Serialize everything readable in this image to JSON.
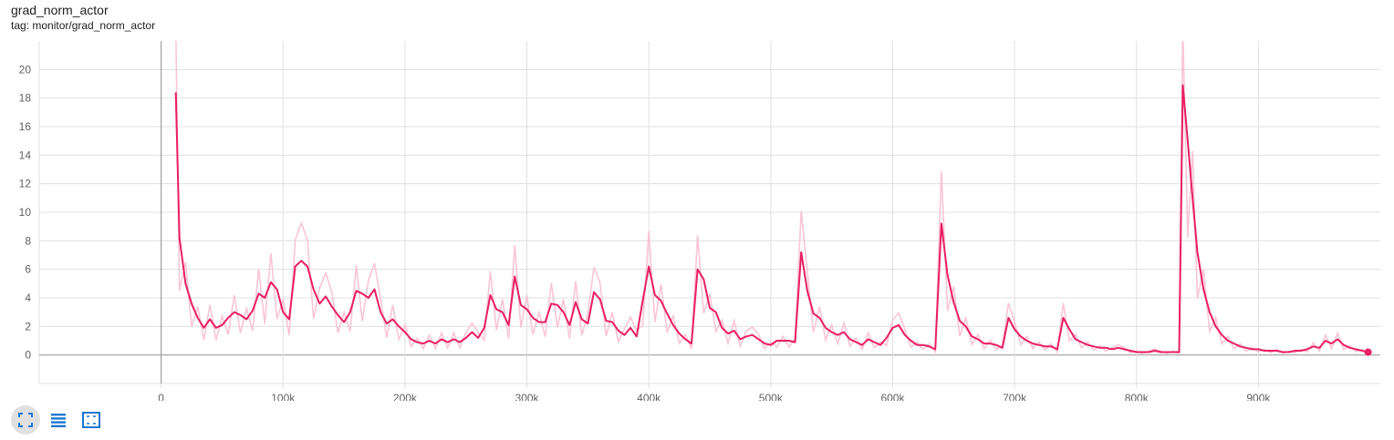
{
  "card": {
    "title": "grad_norm_actor",
    "tag": "tag: monitor/grad_norm_actor"
  },
  "toolbar": {
    "buttons": [
      "fullscreen-icon",
      "data-table-icon",
      "fit-domain-icon"
    ],
    "accent_color": "#1976d2"
  },
  "chart_data": {
    "type": "line",
    "title": "grad_norm_actor",
    "xlabel": "",
    "ylabel": "",
    "xlim": [
      -100000,
      1000000
    ],
    "ylim": [
      -2,
      22
    ],
    "grid": true,
    "x_ticks": [
      0,
      100000,
      200000,
      300000,
      400000,
      500000,
      600000,
      700000,
      800000,
      900000
    ],
    "x_tick_labels": [
      "0",
      "100k",
      "200k",
      "300k",
      "400k",
      "500k",
      "600k",
      "700k",
      "800k",
      "900k"
    ],
    "y_ticks": [
      0,
      2,
      4,
      6,
      8,
      10,
      12,
      14,
      16,
      18,
      20
    ],
    "y_tick_labels": [
      "0",
      "2",
      "4",
      "6",
      "8",
      "10",
      "12",
      "14",
      "16",
      "18",
      "20"
    ],
    "colors": {
      "smoothed": "#e91e63",
      "raw": "#f8bbd0",
      "grid": "#e0e0e0",
      "axis": "#9e9e9e"
    },
    "series": [
      {
        "values": [
          [
            12000,
            18.4
          ],
          [
            15000,
            8.2
          ],
          [
            20000,
            5.0
          ],
          [
            25000,
            3.6
          ],
          [
            30000,
            2.6
          ],
          [
            35000,
            1.9
          ],
          [
            40000,
            2.5
          ],
          [
            45000,
            1.9
          ],
          [
            50000,
            2.1
          ],
          [
            55000,
            2.6
          ],
          [
            60000,
            3.0
          ],
          [
            65000,
            2.8
          ],
          [
            70000,
            2.5
          ],
          [
            75000,
            3.1
          ],
          [
            80000,
            4.3
          ],
          [
            85000,
            4.0
          ],
          [
            90000,
            5.1
          ],
          [
            95000,
            4.6
          ],
          [
            100000,
            3.0
          ],
          [
            105000,
            2.5
          ],
          [
            110000,
            6.2
          ],
          [
            115000,
            6.6
          ],
          [
            120000,
            6.2
          ],
          [
            125000,
            4.6
          ],
          [
            130000,
            3.6
          ],
          [
            135000,
            4.1
          ],
          [
            140000,
            3.4
          ],
          [
            145000,
            2.8
          ],
          [
            150000,
            2.3
          ],
          [
            155000,
            3.0
          ],
          [
            160000,
            4.5
          ],
          [
            165000,
            4.3
          ],
          [
            170000,
            4.0
          ],
          [
            175000,
            4.6
          ],
          [
            180000,
            3.0
          ],
          [
            185000,
            2.2
          ],
          [
            190000,
            2.5
          ],
          [
            195000,
            2.0
          ],
          [
            200000,
            1.6
          ],
          [
            205000,
            1.1
          ],
          [
            210000,
            0.9
          ],
          [
            215000,
            0.8
          ],
          [
            220000,
            1.0
          ],
          [
            225000,
            0.8
          ],
          [
            230000,
            1.1
          ],
          [
            235000,
            0.9
          ],
          [
            240000,
            1.1
          ],
          [
            245000,
            0.9
          ],
          [
            250000,
            1.2
          ],
          [
            255000,
            1.6
          ],
          [
            260000,
            1.2
          ],
          [
            265000,
            1.9
          ],
          [
            270000,
            4.2
          ],
          [
            275000,
            3.2
          ],
          [
            280000,
            3.0
          ],
          [
            285000,
            2.1
          ],
          [
            290000,
            5.5
          ],
          [
            295000,
            3.5
          ],
          [
            300000,
            3.2
          ],
          [
            305000,
            2.6
          ],
          [
            310000,
            2.3
          ],
          [
            315000,
            2.3
          ],
          [
            320000,
            3.6
          ],
          [
            325000,
            3.5
          ],
          [
            330000,
            3.0
          ],
          [
            335000,
            2.1
          ],
          [
            340000,
            3.7
          ],
          [
            345000,
            2.5
          ],
          [
            350000,
            2.2
          ],
          [
            355000,
            4.4
          ],
          [
            360000,
            3.9
          ],
          [
            365000,
            2.4
          ],
          [
            370000,
            2.3
          ],
          [
            375000,
            1.7
          ],
          [
            380000,
            1.4
          ],
          [
            385000,
            1.9
          ],
          [
            390000,
            1.3
          ],
          [
            395000,
            3.8
          ],
          [
            400000,
            6.2
          ],
          [
            405000,
            4.2
          ],
          [
            410000,
            3.8
          ],
          [
            415000,
            2.9
          ],
          [
            420000,
            2.1
          ],
          [
            425000,
            1.5
          ],
          [
            430000,
            1.1
          ],
          [
            435000,
            0.8
          ],
          [
            440000,
            6.0
          ],
          [
            445000,
            5.3
          ],
          [
            450000,
            3.3
          ],
          [
            455000,
            3.0
          ],
          [
            460000,
            1.9
          ],
          [
            465000,
            1.5
          ],
          [
            470000,
            1.7
          ],
          [
            475000,
            1.1
          ],
          [
            480000,
            1.3
          ],
          [
            485000,
            1.4
          ],
          [
            490000,
            1.1
          ],
          [
            495000,
            0.8
          ],
          [
            500000,
            0.7
          ],
          [
            505000,
            1.0
          ],
          [
            510000,
            1.0
          ],
          [
            515000,
            1.0
          ],
          [
            520000,
            0.9
          ],
          [
            525000,
            7.2
          ],
          [
            530000,
            4.5
          ],
          [
            535000,
            2.9
          ],
          [
            540000,
            2.6
          ],
          [
            545000,
            1.9
          ],
          [
            550000,
            1.6
          ],
          [
            555000,
            1.4
          ],
          [
            560000,
            1.6
          ],
          [
            565000,
            1.1
          ],
          [
            570000,
            0.9
          ],
          [
            575000,
            0.7
          ],
          [
            580000,
            1.1
          ],
          [
            585000,
            0.9
          ],
          [
            590000,
            0.7
          ],
          [
            595000,
            1.2
          ],
          [
            600000,
            1.9
          ],
          [
            605000,
            2.1
          ],
          [
            610000,
            1.4
          ],
          [
            615000,
            1.0
          ],
          [
            620000,
            0.7
          ],
          [
            625000,
            0.7
          ],
          [
            630000,
            0.6
          ],
          [
            635000,
            0.4
          ],
          [
            640000,
            9.2
          ],
          [
            645000,
            5.6
          ],
          [
            650000,
            3.7
          ],
          [
            655000,
            2.4
          ],
          [
            660000,
            2.0
          ],
          [
            665000,
            1.3
          ],
          [
            670000,
            1.1
          ],
          [
            675000,
            0.8
          ],
          [
            680000,
            0.8
          ],
          [
            685000,
            0.7
          ],
          [
            690000,
            0.5
          ],
          [
            695000,
            2.6
          ],
          [
            700000,
            1.8
          ],
          [
            705000,
            1.3
          ],
          [
            710000,
            1.0
          ],
          [
            715000,
            0.8
          ],
          [
            720000,
            0.7
          ],
          [
            725000,
            0.6
          ],
          [
            730000,
            0.6
          ],
          [
            735000,
            0.4
          ],
          [
            740000,
            2.6
          ],
          [
            745000,
            1.8
          ],
          [
            750000,
            1.1
          ],
          [
            755000,
            0.9
          ],
          [
            760000,
            0.7
          ],
          [
            765000,
            0.6
          ],
          [
            770000,
            0.5
          ],
          [
            775000,
            0.5
          ],
          [
            780000,
            0.4
          ],
          [
            785000,
            0.5
          ],
          [
            790000,
            0.4
          ],
          [
            795000,
            0.3
          ],
          [
            800000,
            0.2
          ],
          [
            805000,
            0.2
          ],
          [
            810000,
            0.2
          ],
          [
            815000,
            0.3
          ],
          [
            820000,
            0.2
          ],
          [
            825000,
            0.2
          ],
          [
            830000,
            0.2
          ],
          [
            835000,
            0.2
          ],
          [
            838000,
            18.9
          ],
          [
            842000,
            15.0
          ],
          [
            846000,
            11.0
          ],
          [
            850000,
            7.2
          ],
          [
            855000,
            4.6
          ],
          [
            860000,
            3.0
          ],
          [
            865000,
            2.0
          ],
          [
            870000,
            1.4
          ],
          [
            875000,
            1.0
          ],
          [
            880000,
            0.8
          ],
          [
            885000,
            0.6
          ],
          [
            890000,
            0.5
          ],
          [
            895000,
            0.4
          ],
          [
            900000,
            0.4
          ],
          [
            905000,
            0.3
          ],
          [
            910000,
            0.3
          ],
          [
            915000,
            0.3
          ],
          [
            920000,
            0.2
          ],
          [
            925000,
            0.2
          ],
          [
            930000,
            0.3
          ],
          [
            935000,
            0.3
          ],
          [
            940000,
            0.4
          ],
          [
            945000,
            0.6
          ],
          [
            950000,
            0.5
          ],
          [
            955000,
            1.0
          ],
          [
            960000,
            0.8
          ],
          [
            965000,
            1.1
          ],
          [
            970000,
            0.7
          ],
          [
            975000,
            0.5
          ],
          [
            980000,
            0.4
          ],
          [
            985000,
            0.3
          ],
          [
            990000,
            0.2
          ]
        ]
      }
    ]
  }
}
